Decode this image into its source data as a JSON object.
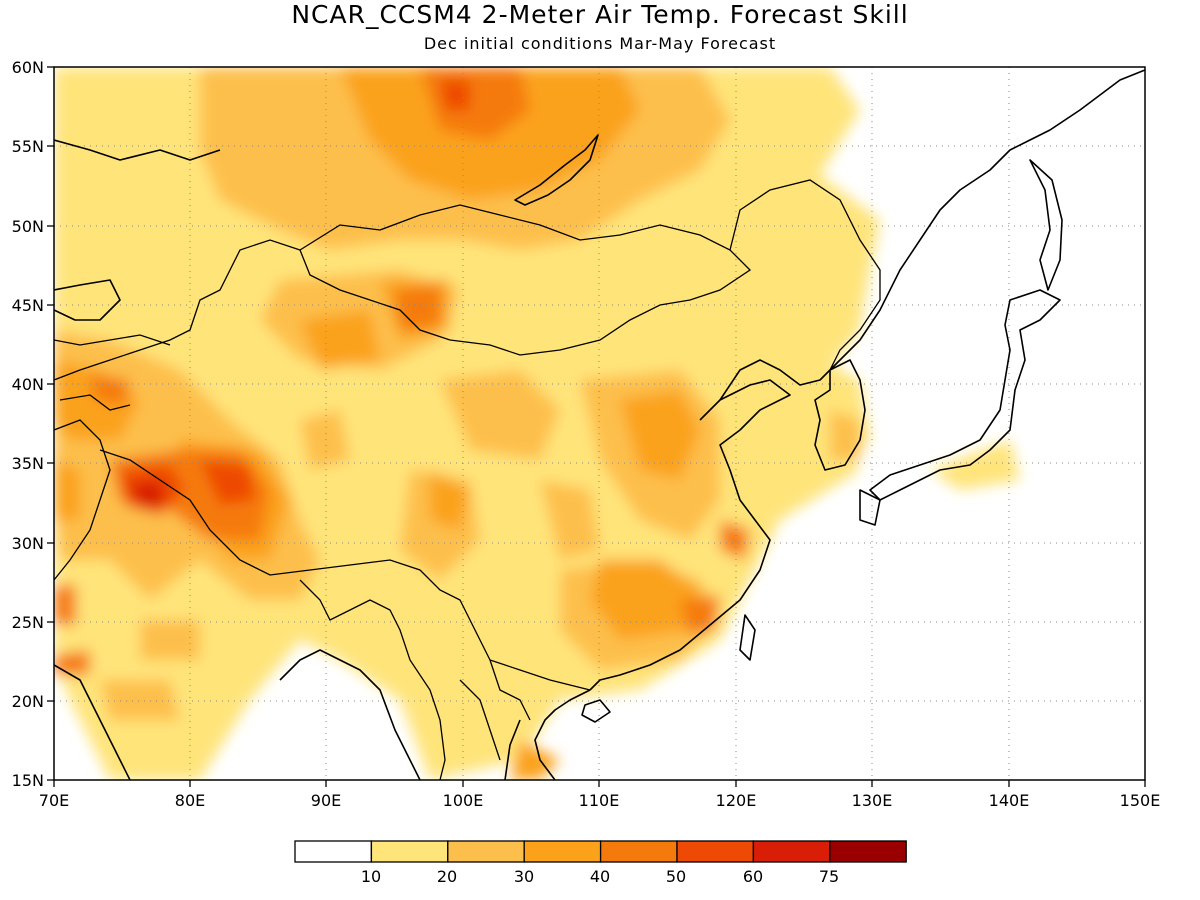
{
  "title": "NCAR_CCSM4 2-Meter Air Temp. Forecast Skill",
  "subtitle": "Dec initial conditions  Mar-May Forecast",
  "map": {
    "lon_range": [
      70,
      150
    ],
    "lat_range": [
      15,
      60
    ],
    "lon_ticks": [
      "70E",
      "80E",
      "90E",
      "100E",
      "110E",
      "120E",
      "130E",
      "140E",
      "150E"
    ],
    "lat_ticks": [
      "15N",
      "20N",
      "25N",
      "30N",
      "35N",
      "40N",
      "45N",
      "50N",
      "55N",
      "60N"
    ],
    "grid": "dotted"
  },
  "legend": {
    "ticks": [
      "10",
      "20",
      "30",
      "40",
      "50",
      "60",
      "75"
    ],
    "colors": [
      "#ffffff",
      "#ffe47a",
      "#fdbf4b",
      "#fba21a",
      "#f57a0c",
      "#ee4a06",
      "#d81e06",
      "#9b0000"
    ]
  }
}
